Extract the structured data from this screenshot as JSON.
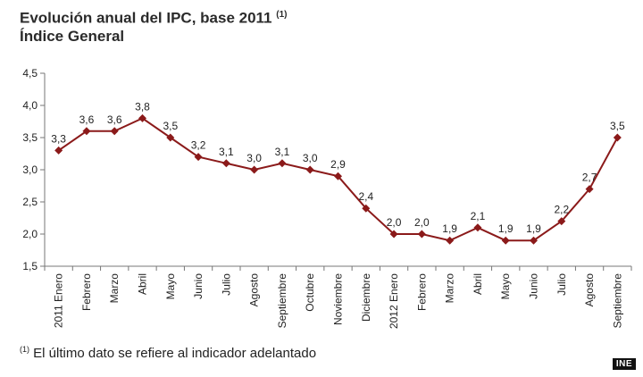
{
  "header": {
    "title": "Evolución anual del IPC, base 2011",
    "title_note": "(1)",
    "subtitle": "Índice General"
  },
  "footnote": {
    "marker": "(1)",
    "text": "El último dato se refiere al indicador adelantado"
  },
  "logo": {
    "text": "INE"
  },
  "chart_data": {
    "type": "line",
    "title": "Evolución anual del IPC, base 2011",
    "subtitle": "Índice General",
    "categories": [
      "2011 Enero",
      "Febrero",
      "Marzo",
      "Abril",
      "Mayo",
      "Junio",
      "Julio",
      "Agosto",
      "Septiembre",
      "Octubre",
      "Noviembre",
      "Diciembre",
      "2012 Enero",
      "Febrero",
      "Marzo",
      "Abril",
      "Mayo",
      "Junio",
      "Julio",
      "Agosto",
      "Septiembre"
    ],
    "values": [
      3.3,
      3.6,
      3.6,
      3.8,
      3.5,
      3.2,
      3.1,
      3.0,
      3.1,
      3.0,
      2.9,
      2.4,
      2.0,
      2.0,
      1.9,
      2.1,
      1.9,
      1.9,
      2.2,
      2.7,
      3.5
    ],
    "value_labels": [
      "3,3",
      "3,6",
      "3,6",
      "3,8",
      "3,5",
      "3,2",
      "3,1",
      "3,0",
      "3,1",
      "3,0",
      "2,9",
      "2,4",
      "2,0",
      "2,0",
      "1,9",
      "2,1",
      "1,9",
      "1,9",
      "2,2",
      "2,7",
      "3,5"
    ],
    "ylim": [
      1.5,
      4.5
    ],
    "yticks": [
      1.5,
      2.0,
      2.5,
      3.0,
      3.5,
      4.0,
      4.5
    ],
    "ytick_labels": [
      "1,5",
      "2,0",
      "2,5",
      "3,0",
      "3,5",
      "4,0",
      "4,5"
    ],
    "xlabel": "",
    "ylabel": "",
    "grid": false,
    "legend": "none",
    "line_color": "#8b1a1a",
    "axis_color": "#777777"
  }
}
